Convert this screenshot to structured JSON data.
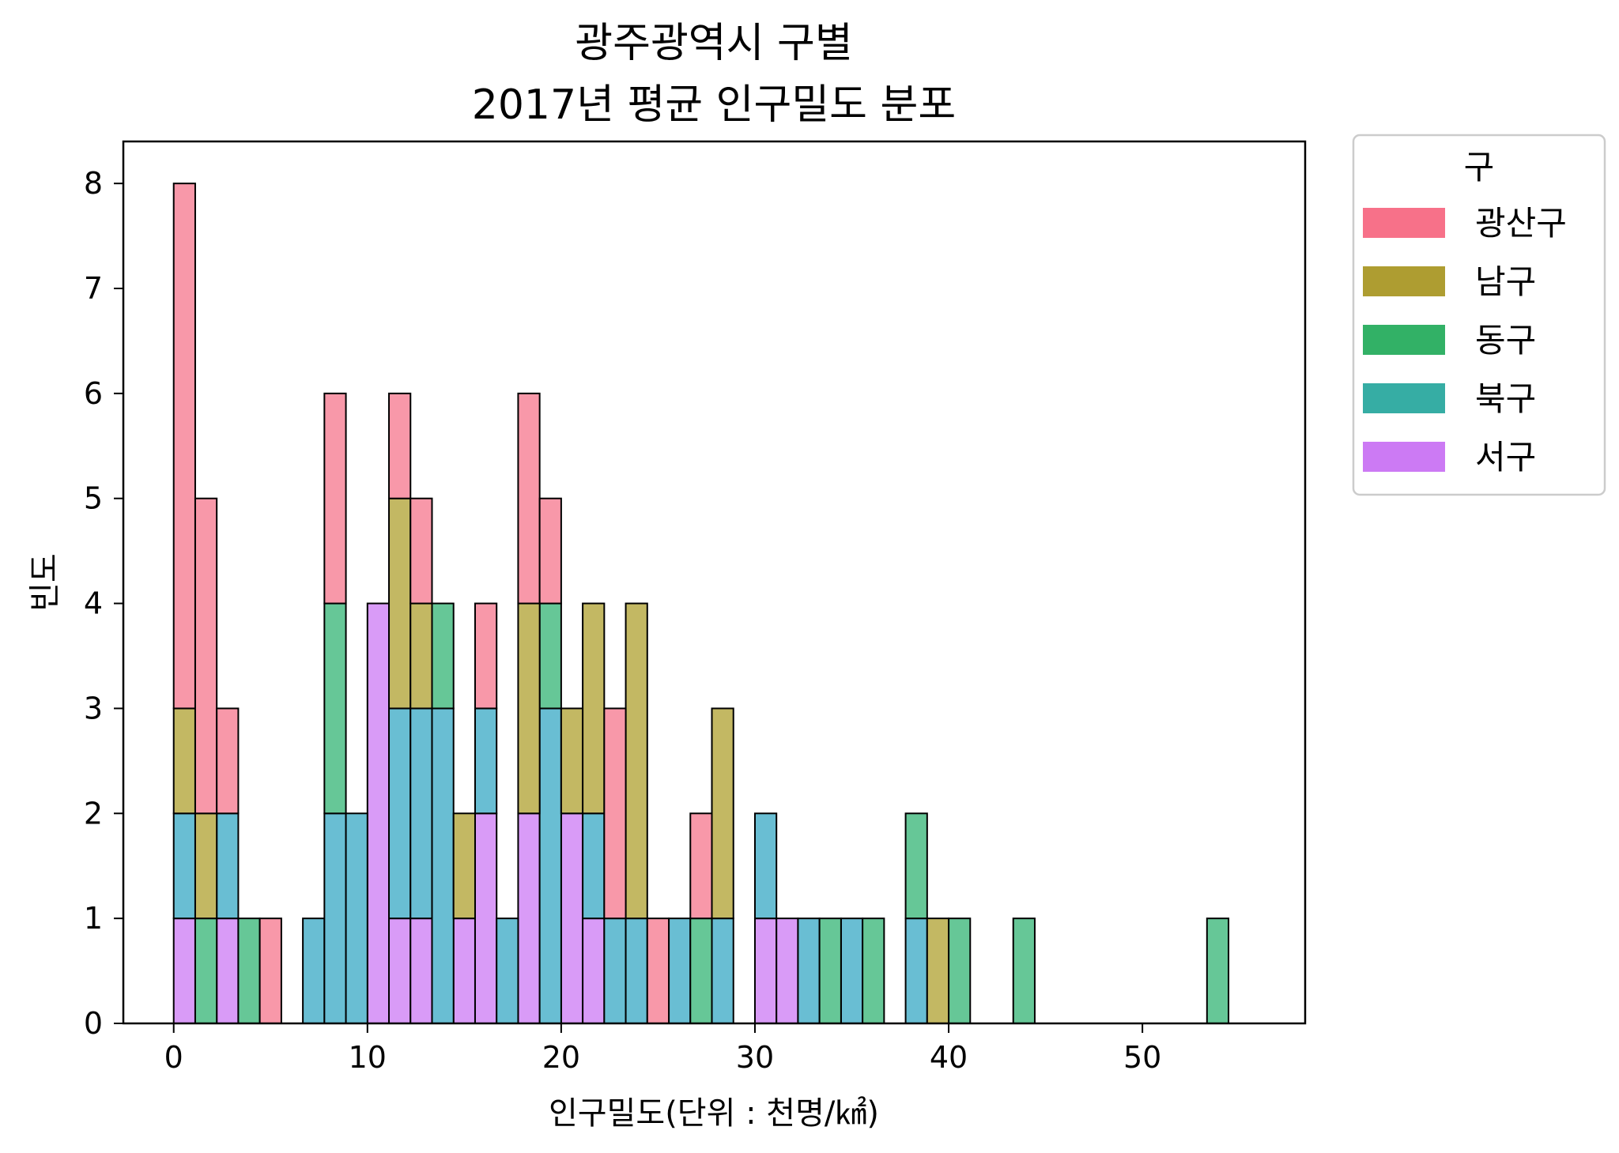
{
  "chart_data": {
    "type": "bar",
    "stacked": true,
    "title": [
      "광주광역시 구별",
      "2017년 평균 인구밀도 분포"
    ],
    "xlabel": "인구밀도(단위 : 천명/㎢)",
    "ylabel": "빈도",
    "xlim": [
      -2.6,
      58.4
    ],
    "ylim": [
      0,
      8.4
    ],
    "xticks": [
      0,
      10,
      20,
      30,
      40,
      50
    ],
    "yticks": [
      0,
      1,
      2,
      3,
      4,
      5,
      6,
      7,
      8
    ],
    "grid": false,
    "legend": {
      "title": "구",
      "placement": "outside-right-top"
    },
    "bin_edges": [
      0.0,
      1.111,
      2.222,
      3.333,
      4.444,
      5.556,
      6.667,
      7.778,
      8.889,
      10.0,
      11.111,
      12.222,
      13.333,
      14.444,
      15.556,
      16.667,
      17.778,
      18.889,
      20.0,
      21.111,
      22.222,
      23.333,
      24.444,
      25.556,
      26.667,
      27.778,
      28.889,
      30.0,
      31.111,
      32.222,
      33.333,
      34.444,
      35.556,
      36.667,
      37.778,
      38.889,
      40.0,
      41.111,
      42.222,
      43.333,
      44.444,
      45.556,
      46.667,
      47.778,
      48.889,
      50.0,
      51.111,
      52.222,
      53.333,
      54.444,
      55.556
    ],
    "series": [
      {
        "name": "서구",
        "color": "#cc7af4",
        "fill": "#d99bf7",
        "values": [
          1,
          0,
          1,
          0,
          0,
          0,
          0,
          0,
          0,
          4,
          1,
          1,
          0,
          1,
          2,
          0,
          2,
          0,
          2,
          1,
          0,
          0,
          0,
          0,
          0,
          0,
          0,
          1,
          1,
          0,
          0,
          0,
          0,
          0,
          0,
          0,
          0,
          0,
          0,
          0,
          0,
          0,
          0,
          0,
          0,
          0,
          0,
          0,
          0,
          0
        ]
      },
      {
        "name": "북구",
        "color": "#36ada4",
        "fill": "#69bed3",
        "values": [
          1,
          0,
          1,
          0,
          0,
          0,
          1,
          2,
          2,
          0,
          2,
          2,
          3,
          0,
          1,
          1,
          0,
          3,
          0,
          1,
          1,
          1,
          0,
          1,
          0,
          1,
          0,
          1,
          0,
          1,
          0,
          1,
          0,
          0,
          1,
          0,
          0,
          0,
          0,
          0,
          0,
          0,
          0,
          0,
          0,
          0,
          0,
          0,
          0,
          0
        ]
      },
      {
        "name": "동구",
        "color": "#32b166",
        "fill": "#66c797",
        "values": [
          0,
          1,
          0,
          1,
          0,
          0,
          0,
          2,
          0,
          0,
          0,
          0,
          1,
          0,
          0,
          0,
          0,
          1,
          0,
          0,
          0,
          0,
          0,
          0,
          1,
          0,
          0,
          0,
          0,
          0,
          1,
          0,
          1,
          0,
          1,
          0,
          1,
          0,
          0,
          1,
          0,
          0,
          0,
          0,
          0,
          0,
          0,
          0,
          1,
          0
        ]
      },
      {
        "name": "남구",
        "color": "#ae9d31",
        "fill": "#c3b863",
        "values": [
          1,
          1,
          0,
          0,
          0,
          0,
          0,
          0,
          0,
          0,
          2,
          1,
          0,
          1,
          0,
          0,
          2,
          0,
          1,
          2,
          0,
          3,
          0,
          0,
          0,
          2,
          0,
          0,
          0,
          0,
          0,
          0,
          0,
          0,
          0,
          1,
          0,
          0,
          0,
          0,
          0,
          0,
          0,
          0,
          0,
          0,
          0,
          0,
          0,
          0
        ]
      },
      {
        "name": "광산구",
        "color": "#f77189",
        "fill": "#f898a9",
        "values": [
          5,
          3,
          1,
          0,
          1,
          0,
          0,
          2,
          0,
          0,
          1,
          1,
          0,
          0,
          1,
          0,
          2,
          1,
          0,
          0,
          2,
          0,
          1,
          0,
          1,
          0,
          0,
          0,
          0,
          0,
          0,
          0,
          0,
          0,
          0,
          0,
          0,
          0,
          0,
          0,
          0,
          0,
          0,
          0,
          0,
          0,
          0,
          0,
          0,
          0
        ]
      }
    ]
  }
}
